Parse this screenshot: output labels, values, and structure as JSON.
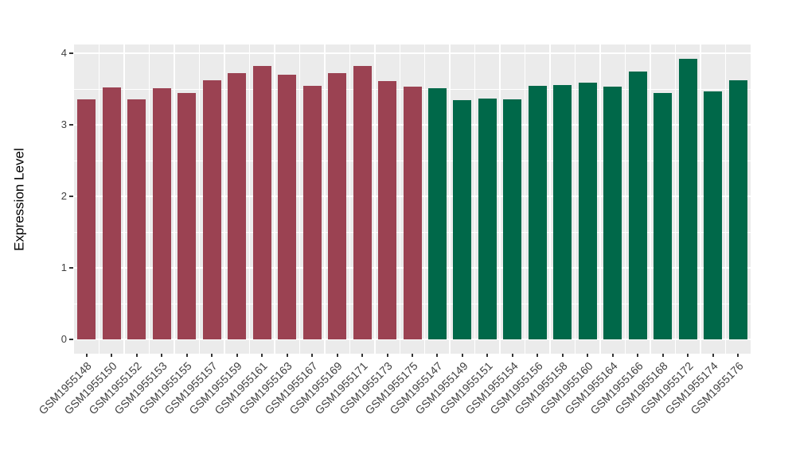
{
  "figure": {
    "background": "#FFFFFF",
    "panel_background": "#EBEBEB",
    "gridline_color": "#FFFFFF",
    "axis_text_color": "#404040",
    "axis_title_color": "#000000"
  },
  "chart_data": {
    "type": "bar",
    "title": "",
    "xlabel": "",
    "ylabel": "Expression Level",
    "ylim": [
      0,
      4
    ],
    "yticks": [
      0,
      1,
      2,
      3,
      4
    ],
    "grid": "white major and minor horizontal gridlines plus vertical separators on gray panel",
    "legend_position": "none",
    "group_colors": {
      "left_group": "#9B4252",
      "right_group": "#006849"
    },
    "bars": [
      {
        "label": "GSM1955148",
        "value": 3.36,
        "color": "#9B4252"
      },
      {
        "label": "GSM1955150",
        "value": 3.52,
        "color": "#9B4252"
      },
      {
        "label": "GSM1955152",
        "value": 3.36,
        "color": "#9B4252"
      },
      {
        "label": "GSM1955153",
        "value": 3.51,
        "color": "#9B4252"
      },
      {
        "label": "GSM1955155",
        "value": 3.45,
        "color": "#9B4252"
      },
      {
        "label": "GSM1955157",
        "value": 3.62,
        "color": "#9B4252"
      },
      {
        "label": "GSM1955159",
        "value": 3.72,
        "color": "#9B4252"
      },
      {
        "label": "GSM1955161",
        "value": 3.82,
        "color": "#9B4252"
      },
      {
        "label": "GSM1955163",
        "value": 3.7,
        "color": "#9B4252"
      },
      {
        "label": "GSM1955167",
        "value": 3.54,
        "color": "#9B4252"
      },
      {
        "label": "GSM1955169",
        "value": 3.72,
        "color": "#9B4252"
      },
      {
        "label": "GSM1955171",
        "value": 3.82,
        "color": "#9B4252"
      },
      {
        "label": "GSM1955173",
        "value": 3.61,
        "color": "#9B4252"
      },
      {
        "label": "GSM1955175",
        "value": 3.53,
        "color": "#9B4252"
      },
      {
        "label": "GSM1955147",
        "value": 3.51,
        "color": "#006849"
      },
      {
        "label": "GSM1955149",
        "value": 3.35,
        "color": "#006849"
      },
      {
        "label": "GSM1955151",
        "value": 3.37,
        "color": "#006849"
      },
      {
        "label": "GSM1955154",
        "value": 3.36,
        "color": "#006849"
      },
      {
        "label": "GSM1955156",
        "value": 3.54,
        "color": "#006849"
      },
      {
        "label": "GSM1955158",
        "value": 3.56,
        "color": "#006849"
      },
      {
        "label": "GSM1955160",
        "value": 3.59,
        "color": "#006849"
      },
      {
        "label": "GSM1955164",
        "value": 3.53,
        "color": "#006849"
      },
      {
        "label": "GSM1955166",
        "value": 3.74,
        "color": "#006849"
      },
      {
        "label": "GSM1955168",
        "value": 3.44,
        "color": "#006849"
      },
      {
        "label": "GSM1955172",
        "value": 3.92,
        "color": "#006849"
      },
      {
        "label": "GSM1955174",
        "value": 3.47,
        "color": "#006849"
      },
      {
        "label": "GSM1955176",
        "value": 3.62,
        "color": "#006849"
      }
    ]
  }
}
